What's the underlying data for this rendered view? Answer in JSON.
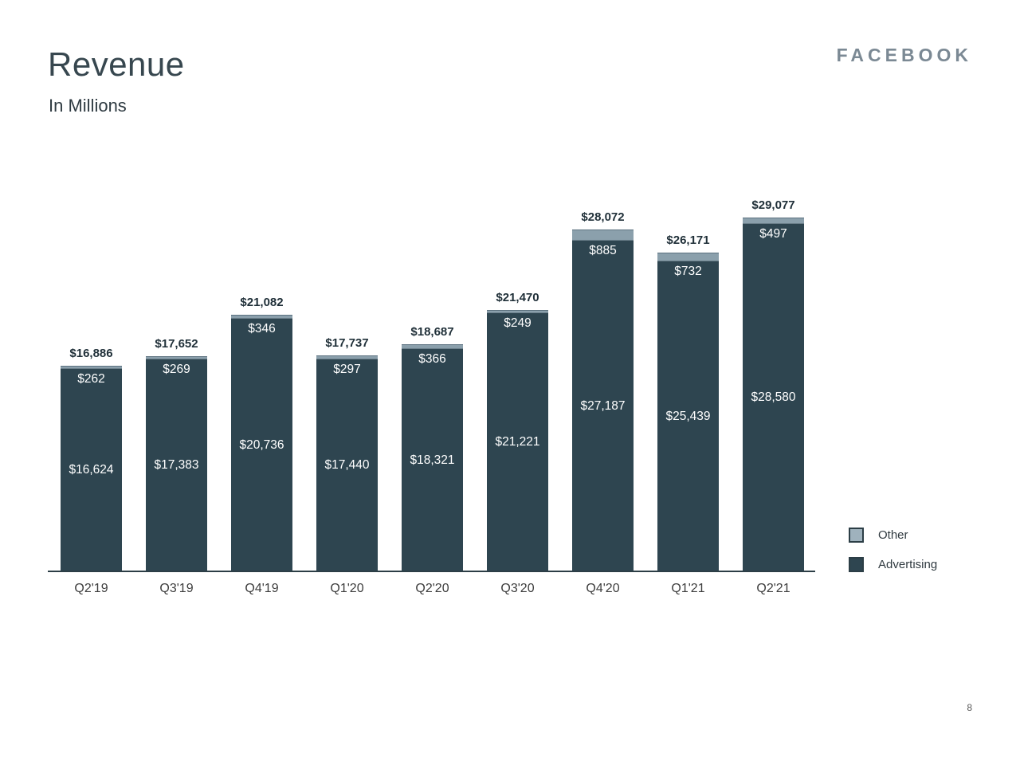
{
  "slide": {
    "title": "Revenue",
    "subtitle": "In Millions",
    "logo": "FACEBOOK",
    "page_number": "8"
  },
  "colors": {
    "advertising": "#2e4550",
    "other": "#8ba0ac",
    "other_legend": "#9fb2bd",
    "axis": "#2c3e46"
  },
  "legend": {
    "position": "right",
    "items": [
      {
        "label": "Other"
      },
      {
        "label": "Advertising"
      }
    ]
  },
  "chart_data": {
    "type": "bar",
    "stacked": true,
    "title": "Revenue (In Millions)",
    "xlabel": "",
    "ylabel": "",
    "grid": false,
    "ylim": [
      0,
      29077
    ],
    "categories": [
      "Q2'19",
      "Q3'19",
      "Q4'19",
      "Q1'20",
      "Q2'20",
      "Q3'20",
      "Q4'20",
      "Q1'21",
      "Q2'21"
    ],
    "series": [
      {
        "name": "Advertising",
        "values": [
          16624,
          17383,
          20736,
          17440,
          18321,
          21221,
          27187,
          25439,
          28580
        ],
        "labels": [
          "$16,624",
          "$17,383",
          "$20,736",
          "$17,440",
          "$18,321",
          "$21,221",
          "$27,187",
          "$25,439",
          "$28,580"
        ]
      },
      {
        "name": "Other",
        "values": [
          262,
          269,
          346,
          297,
          366,
          249,
          885,
          732,
          497
        ],
        "labels": [
          "$262",
          "$269",
          "$346",
          "$297",
          "$366",
          "$249",
          "$885",
          "$732",
          "$497"
        ]
      }
    ],
    "totals": [
      16886,
      17652,
      21082,
      17737,
      18687,
      21470,
      28072,
      26171,
      29077
    ],
    "total_labels": [
      "$16,886",
      "$17,652",
      "$21,082",
      "$17,737",
      "$18,687",
      "$21,470",
      "$28,072",
      "$26,171",
      "$29,077"
    ]
  }
}
